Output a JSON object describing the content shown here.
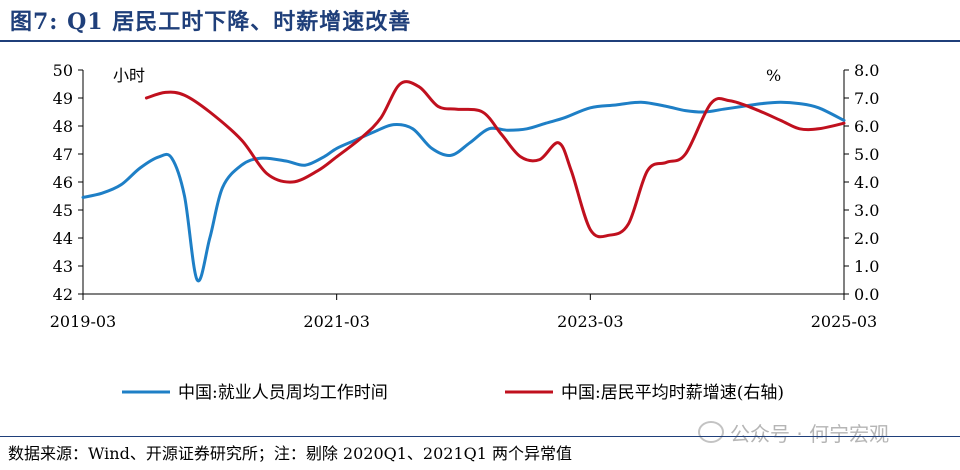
{
  "title": "图7:  Q1 居民工时下降、时薪增速改善",
  "source": "数据来源：Wind、开源证券研究所；注：剔除 2020Q1、2021Q1 两个异常值",
  "watermark": "公众号 · 何宁宏观",
  "colors": {
    "blue": "#1e7fc6",
    "red": "#c0101e",
    "title": "#1f3f7a"
  },
  "chart_data": {
    "type": "line",
    "y_left": {
      "unit": "小时",
      "lim": [
        42,
        50
      ],
      "ticks": [
        "42",
        "43",
        "44",
        "45",
        "46",
        "47",
        "48",
        "49",
        "50"
      ]
    },
    "y_right": {
      "unit": "%",
      "lim": [
        0,
        8
      ],
      "ticks": [
        "0.0",
        "1.0",
        "2.0",
        "3.0",
        "4.0",
        "5.0",
        "6.0",
        "7.0",
        "8.0"
      ]
    },
    "x_ticks": [
      "2019-03",
      "2021-03",
      "2023-03",
      "2025-03"
    ],
    "x_lim": [
      2019.0,
      2025.0
    ],
    "grid": false,
    "legend_placement": "bottom",
    "series": [
      {
        "name": "中国:就业人员周均工作时间",
        "axis": "left",
        "x": [
          2019.0,
          2019.15,
          2019.3,
          2019.45,
          2019.6,
          2019.7,
          2019.8,
          2019.9,
          2020.0,
          2020.1,
          2020.25,
          2020.4,
          2020.6,
          2020.75,
          2020.9,
          2021.0,
          2021.15,
          2021.3,
          2021.45,
          2021.6,
          2021.75,
          2021.9,
          2022.05,
          2022.2,
          2022.35,
          2022.5,
          2022.65,
          2022.8,
          2023.0,
          2023.2,
          2023.4,
          2023.6,
          2023.75,
          2023.9,
          2024.05,
          2024.2,
          2024.35,
          2024.5,
          2024.65,
          2024.8,
          2025.0
        ],
        "values": [
          45.45,
          45.6,
          45.9,
          46.5,
          46.9,
          46.85,
          45.5,
          42.5,
          44.0,
          45.8,
          46.6,
          46.85,
          46.75,
          46.6,
          46.9,
          47.2,
          47.5,
          47.8,
          48.05,
          47.9,
          47.2,
          46.95,
          47.4,
          47.9,
          47.85,
          47.9,
          48.1,
          48.3,
          48.65,
          48.75,
          48.85,
          48.7,
          48.55,
          48.5,
          48.6,
          48.7,
          48.8,
          48.85,
          48.8,
          48.65,
          48.2
        ]
      },
      {
        "name": "中国:居民平均时薪增速(右轴)",
        "axis": "right",
        "x": [
          2019.5,
          2019.65,
          2019.8,
          2020.0,
          2020.25,
          2020.45,
          2020.65,
          2020.85,
          2021.0,
          2021.2,
          2021.35,
          2021.5,
          2021.65,
          2021.8,
          2021.95,
          2022.15,
          2022.3,
          2022.45,
          2022.6,
          2022.75,
          2022.85,
          2023.0,
          2023.15,
          2023.3,
          2023.45,
          2023.6,
          2023.75,
          2023.95,
          2024.1,
          2024.3,
          2024.5,
          2024.65,
          2024.8,
          2025.0
        ],
        "values": [
          7.0,
          7.2,
          7.1,
          6.5,
          5.5,
          4.3,
          4.0,
          4.4,
          4.9,
          5.6,
          6.3,
          7.5,
          7.4,
          6.7,
          6.6,
          6.5,
          5.7,
          4.9,
          4.8,
          5.4,
          4.4,
          2.3,
          2.1,
          2.5,
          4.4,
          4.7,
          5.0,
          6.8,
          6.9,
          6.6,
          6.2,
          5.9,
          5.9,
          6.1
        ]
      }
    ]
  }
}
